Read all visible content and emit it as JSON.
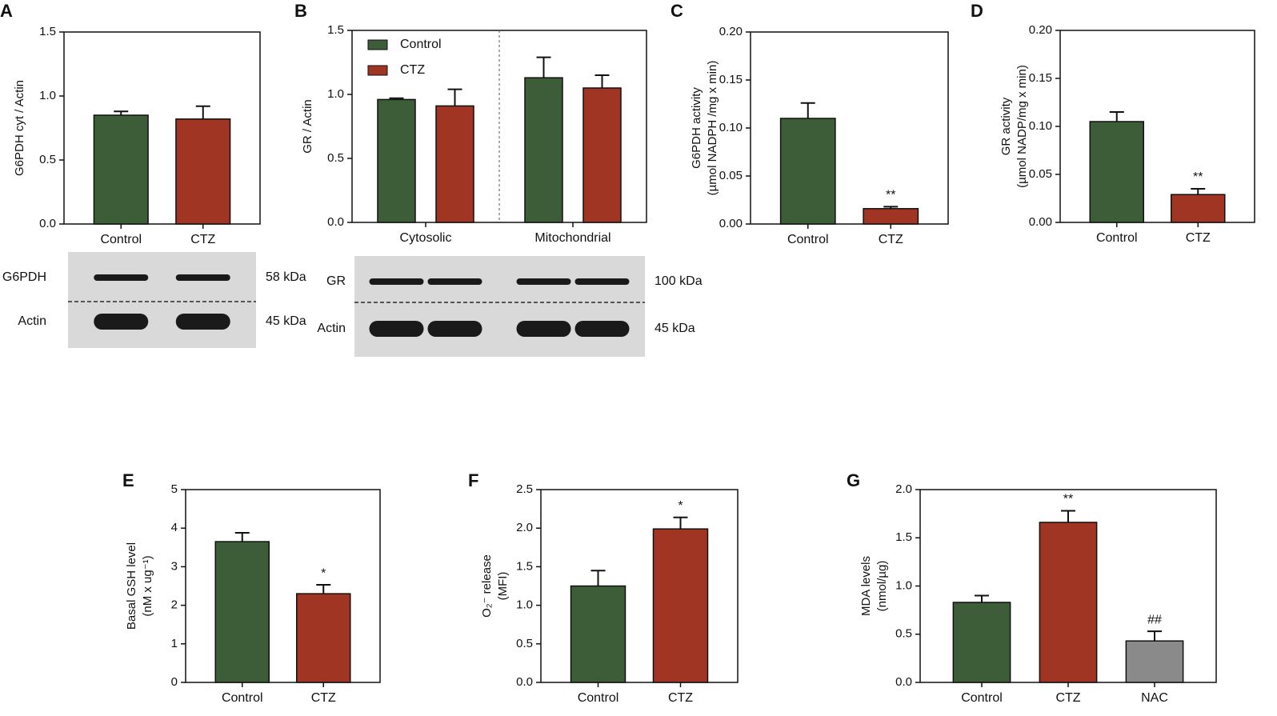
{
  "chart_data": [
    {
      "type": "bar",
      "panel": "A",
      "ylabel": [
        "G6PDH cyt / Actin"
      ],
      "categories": [
        "Control",
        "CTZ"
      ],
      "values": [
        0.85,
        0.82
      ],
      "errors": [
        0.03,
        0.1
      ],
      "colors": [
        "#3d5c38",
        "#a03523"
      ],
      "ylim": [
        0,
        1.5
      ],
      "yticks": [
        {
          "value": 0,
          "label": "0.0"
        },
        0.5,
        {
          "value": 1,
          "label": "1.0"
        },
        1.5
      ],
      "blot": [
        {
          "label": "G6PDH",
          "size": "58 kDa"
        },
        {
          "label": "Actin",
          "size": "45 kDa"
        }
      ]
    },
    {
      "type": "grouped_bar",
      "panel": "B",
      "ylabel": [
        "GR / Actin"
      ],
      "categories": [
        "Cytosolic",
        "Mitochondrial"
      ],
      "series": [
        {
          "name": "Control",
          "color": "#3d5c38",
          "values": [
            0.96,
            1.13
          ],
          "errors": [
            0.01,
            0.16
          ]
        },
        {
          "name": "CTZ",
          "color": "#a03523",
          "values": [
            0.91,
            1.05
          ],
          "errors": [
            0.13,
            0.1
          ]
        }
      ],
      "legend": "upper left",
      "ylim": [
        0,
        1.5
      ],
      "yticks": [
        {
          "value": 0,
          "label": "0.0"
        },
        0.5,
        {
          "value": 1,
          "label": "1.0"
        },
        1.5
      ],
      "blot": [
        {
          "label": "GR",
          "size": "100 kDa"
        },
        {
          "label": "Actin",
          "size": "45 kDa"
        }
      ]
    },
    {
      "type": "bar",
      "panel": "C",
      "ylabel": [
        "G6PDH activity",
        "(µmol NADPH /mg x min)"
      ],
      "categories": [
        "Control",
        "CTZ"
      ],
      "values": [
        0.11,
        0.016
      ],
      "errors": [
        0.016,
        0.002
      ],
      "colors": [
        "#3d5c38",
        "#a03523"
      ],
      "annotations": [
        null,
        "**"
      ],
      "ylim": [
        0,
        0.2
      ],
      "yticks": [
        {
          "value": 0,
          "label": "0.00"
        },
        0.05,
        {
          "value": 0.1,
          "label": "0.10"
        },
        0.15,
        {
          "value": 0.2,
          "label": "0.20"
        }
      ]
    },
    {
      "type": "bar",
      "panel": "D",
      "ylabel": [
        "GR activity",
        "(µmol NADP/mg x min)"
      ],
      "categories": [
        "Control",
        "CTZ"
      ],
      "values": [
        0.105,
        0.029
      ],
      "errors": [
        0.01,
        0.006
      ],
      "colors": [
        "#3d5c38",
        "#a03523"
      ],
      "annotations": [
        null,
        "**"
      ],
      "ylim": [
        0,
        0.2
      ],
      "yticks": [
        {
          "value": 0,
          "label": "0.00"
        },
        0.05,
        {
          "value": 0.1,
          "label": "0.10"
        },
        0.15,
        {
          "value": 0.2,
          "label": "0.20"
        }
      ]
    },
    {
      "type": "bar",
      "panel": "E",
      "ylabel": [
        "Basal GSH level",
        "(nM x ug⁻¹)"
      ],
      "categories": [
        "Control",
        "CTZ"
      ],
      "values": [
        3.65,
        2.3
      ],
      "errors": [
        0.23,
        0.23
      ],
      "colors": [
        "#3d5c38",
        "#a03523"
      ],
      "annotations": [
        null,
        "*"
      ],
      "ylim": [
        0,
        5
      ],
      "yticks": [
        0,
        1,
        2,
        3,
        4,
        5
      ]
    },
    {
      "type": "bar",
      "panel": "F",
      "ylabel": [
        "O₂⁻ release",
        "(MFI)"
      ],
      "categories": [
        "Control",
        "CTZ"
      ],
      "values": [
        1.25,
        1.99
      ],
      "errors": [
        0.2,
        0.15
      ],
      "colors": [
        "#3d5c38",
        "#a03523"
      ],
      "annotations": [
        null,
        "*"
      ],
      "ylim": [
        0,
        2.5
      ],
      "yticks": [
        {
          "value": 0,
          "label": "0.0"
        },
        0.5,
        {
          "value": 1,
          "label": "1.0"
        },
        1.5,
        {
          "value": 2,
          "label": "2.0"
        },
        2.5
      ]
    },
    {
      "type": "bar",
      "panel": "G",
      "ylabel": [
        "MDA levels",
        "(nmol/µg)"
      ],
      "categories": [
        "Control",
        "CTZ",
        "NAC"
      ],
      "values": [
        0.83,
        1.66,
        0.43
      ],
      "errors": [
        0.07,
        0.12,
        0.1
      ],
      "colors": [
        "#3d5c38",
        "#a03523",
        "#8a8a8a"
      ],
      "annotations": [
        null,
        "**",
        "##"
      ],
      "ylim": [
        0,
        2
      ],
      "yticks": [
        {
          "value": 0,
          "label": "0.0"
        },
        0.5,
        {
          "value": 1,
          "label": "1.0"
        },
        1.5,
        {
          "value": 2,
          "label": "2.0"
        }
      ]
    }
  ]
}
